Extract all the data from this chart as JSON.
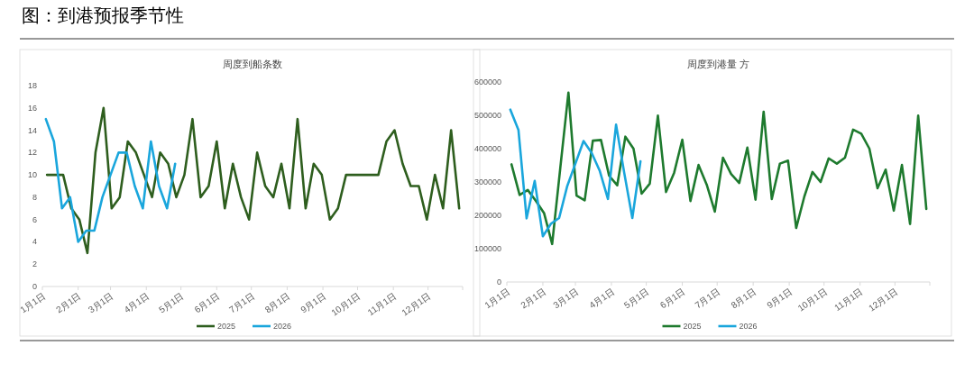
{
  "chart_data": [
    {
      "type": "line",
      "title": "周度到船条数",
      "annotations": [
        "图：到港预报季节性"
      ],
      "legend": "bottom",
      "xlim": [
        "--01-01",
        "--12-31"
      ],
      "xticks": [
        {
          "value": "--01-01",
          "label": "1月1日"
        },
        {
          "value": "--02-01",
          "label": "2月1日"
        },
        {
          "value": "--03-01",
          "label": "3月1日"
        },
        {
          "value": "--04-01",
          "label": "4月1日"
        },
        {
          "value": "--05-01",
          "label": "5月1日"
        },
        {
          "value": "--06-01",
          "label": "6月1日"
        },
        {
          "value": "--07-01",
          "label": "7月1日"
        },
        {
          "value": "--08-01",
          "label": "8月1日"
        },
        {
          "value": "--09-01",
          "label": "9月1日"
        },
        {
          "value": "--10-01",
          "label": "10月1日"
        },
        {
          "value": "--11-01",
          "label": "11月1日"
        },
        {
          "value": "--12-01",
          "label": "12月1日"
        },
        {
          "value": "--12-31",
          "label": null
        }
      ],
      "ylim": [
        0,
        18
      ],
      "yticks": [
        0,
        2,
        4,
        6,
        8,
        10,
        12,
        14,
        16,
        18
      ],
      "series": [
        {
          "name": "2025",
          "color": "#2e5e1e",
          "x": [
            "--01-05",
            "--01-12",
            "--01-19",
            "--01-26",
            "--02-02",
            "--02-09",
            "--02-16",
            "--02-23",
            "--03-02",
            "--03-09",
            "--03-16",
            "--03-23",
            "--03-30",
            "--04-06",
            "--04-13",
            "--04-20",
            "--04-27",
            "--05-04",
            "--05-11",
            "--05-18",
            "--05-25",
            "--06-01",
            "--06-08",
            "--06-15",
            "--06-22",
            "--06-29",
            "--07-06",
            "--07-13",
            "--07-20",
            "--07-27",
            "--08-03",
            "--08-10",
            "--08-17",
            "--08-24",
            "--08-31",
            "--09-07",
            "--09-14",
            "--09-21",
            "--09-28",
            "--10-05",
            "--10-12",
            "--10-19",
            "--10-26",
            "--11-02",
            "--11-09",
            "--11-16",
            "--11-23",
            "--11-30",
            "--12-07",
            "--12-14",
            "--12-21",
            "--12-28"
          ],
          "values": [
            10,
            10,
            10,
            7,
            6,
            3,
            12,
            16,
            7,
            8,
            13,
            12,
            10,
            8,
            12,
            11,
            8,
            10,
            15,
            8,
            9,
            13,
            7,
            11,
            8,
            6,
            12,
            9,
            8,
            11,
            7,
            15,
            7,
            11,
            10,
            6,
            7,
            10,
            10,
            10,
            10,
            10,
            13,
            14,
            11,
            9,
            9,
            6,
            10,
            7,
            14,
            7
          ]
        },
        {
          "name": "2026",
          "color": "#1aa6dc",
          "x": [
            "--01-04",
            "--01-11",
            "--01-18",
            "--01-25",
            "--02-01",
            "--02-08",
            "--02-15",
            "--02-22",
            "--03-01",
            "--03-08",
            "--03-15",
            "--03-22",
            "--03-29",
            "--04-05",
            "--04-12",
            "--04-19",
            "--04-26"
          ],
          "values": [
            15,
            13,
            7,
            8,
            4,
            5,
            5,
            8,
            10,
            12,
            12,
            9,
            7,
            13,
            9,
            7,
            11
          ]
        }
      ]
    },
    {
      "type": "line",
      "title": "周度到港量 方",
      "legend": "bottom",
      "xlim": [
        "--01-01",
        "--12-31"
      ],
      "xticks": [
        {
          "value": "--01-01",
          "label": "1月1日"
        },
        {
          "value": "--02-01",
          "label": "2月1日"
        },
        {
          "value": "--03-01",
          "label": "3月1日"
        },
        {
          "value": "--04-01",
          "label": "4月1日"
        },
        {
          "value": "--05-01",
          "label": "5月1日"
        },
        {
          "value": "--06-01",
          "label": "6月1日"
        },
        {
          "value": "--07-01",
          "label": "7月1日"
        },
        {
          "value": "--08-01",
          "label": "8月1日"
        },
        {
          "value": "--09-01",
          "label": "9月1日"
        },
        {
          "value": "--10-01",
          "label": "10月1日"
        },
        {
          "value": "--11-01",
          "label": "11月1日"
        },
        {
          "value": "--12-01",
          "label": "12月1日"
        },
        {
          "value": "--12-31",
          "label": null
        }
      ],
      "ylim": [
        0,
        600000
      ],
      "yticks": [
        0,
        100000,
        200000,
        300000,
        400000,
        500000,
        600000
      ],
      "series": [
        {
          "name": "2025",
          "color": "#1e7a2e",
          "x": [
            "--01-05",
            "--01-12",
            "--01-19",
            "--01-26",
            "--02-02",
            "--02-09",
            "--02-16",
            "--02-23",
            "--03-02",
            "--03-09",
            "--03-16",
            "--03-23",
            "--03-30",
            "--04-06",
            "--04-13",
            "--04-20",
            "--04-27",
            "--05-04",
            "--05-11",
            "--05-18",
            "--05-25",
            "--06-01",
            "--06-08",
            "--06-15",
            "--06-22",
            "--06-29",
            "--07-06",
            "--07-13",
            "--07-20",
            "--07-27",
            "--08-03",
            "--08-10",
            "--08-17",
            "--08-24",
            "--08-31",
            "--09-07",
            "--09-14",
            "--09-21",
            "--09-28",
            "--10-05",
            "--10-12",
            "--10-19",
            "--10-26",
            "--11-02",
            "--11-09",
            "--11-16",
            "--11-23",
            "--11-30",
            "--12-07",
            "--12-14",
            "--12-21",
            "--12-28"
          ],
          "values": [
            353000,
            261000,
            276000,
            243000,
            207000,
            114000,
            342000,
            568000,
            259000,
            245000,
            424000,
            426000,
            319000,
            290000,
            436000,
            400000,
            265000,
            295000,
            499000,
            270000,
            328000,
            427000,
            243000,
            351000,
            292000,
            211000,
            373000,
            324000,
            297000,
            403000,
            247000,
            511000,
            249000,
            355000,
            364000,
            162000,
            256000,
            330000,
            300000,
            371000,
            355000,
            373000,
            457000,
            445000,
            400000,
            281000,
            337000,
            214000,
            351000,
            174000,
            499000,
            219000
          ]
        },
        {
          "name": "2026",
          "color": "#1aa6dc",
          "x": [
            "--01-04",
            "--01-11",
            "--01-18",
            "--01-25",
            "--02-01",
            "--02-08",
            "--02-15",
            "--02-22",
            "--03-01",
            "--03-08",
            "--03-15",
            "--03-22",
            "--03-29",
            "--04-05",
            "--04-12",
            "--04-19",
            "--04-26"
          ],
          "values": [
            517000,
            456000,
            191000,
            303000,
            137000,
            175000,
            192000,
            288000,
            355000,
            423000,
            387000,
            333000,
            249000,
            472000,
            328000,
            192000,
            362000
          ]
        }
      ]
    }
  ]
}
